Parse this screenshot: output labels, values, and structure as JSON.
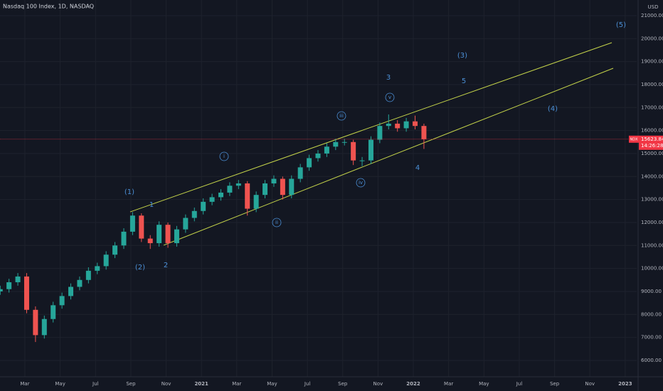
{
  "chart_data": {
    "type": "candlestick",
    "title": "Nasdaq 100 Index, 1D, NASDAQ",
    "currency": "USD",
    "symbol_tag": "NDX",
    "countdown": "14:26:28",
    "x": [
      0.6,
      1.1,
      1.6,
      2.1,
      2.6,
      3.1,
      3.6,
      4.1,
      4.6,
      5.1,
      5.6,
      6.1,
      6.6,
      7.1,
      7.6,
      8.1,
      8.6,
      9.1,
      9.6,
      10.1,
      10.6,
      11.1,
      11.6,
      12.1,
      12.6,
      13.1,
      13.6,
      14.1,
      14.6,
      15.1,
      15.6,
      16.1,
      16.6,
      17.1,
      17.6,
      18.1,
      18.6,
      19.1,
      19.6,
      20.1,
      20.6,
      21.1,
      21.6,
      22.1,
      22.6,
      23.1,
      23.6,
      24.1,
      24.6
    ],
    "open": [
      9000,
      9100,
      9400,
      9650,
      8200,
      7100,
      7800,
      8400,
      8800,
      9200,
      9500,
      9900,
      10100,
      10600,
      11000,
      11600,
      12300,
      11300,
      11100,
      11900,
      11100,
      11700,
      12200,
      12500,
      12900,
      13100,
      13300,
      13600,
      13700,
      12600,
      13200,
      13700,
      13900,
      13200,
      13900,
      14400,
      14800,
      15000,
      15300,
      15500,
      15500,
      14700,
      14700,
      15600,
      16200,
      16300,
      16100,
      16400,
      16200
    ],
    "high": [
      9250,
      9550,
      9800,
      9800,
      8350,
      7950,
      8550,
      8950,
      9350,
      9650,
      10050,
      10250,
      10750,
      11150,
      11750,
      12450,
      12400,
      11450,
      12050,
      12000,
      11850,
      12350,
      12650,
      13050,
      13250,
      13450,
      13750,
      13850,
      13800,
      13350,
      13850,
      14050,
      14000,
      14050,
      14550,
      14950,
      15150,
      15450,
      15650,
      15650,
      15600,
      14850,
      15750,
      16350,
      16700,
      16450,
      16550,
      16650,
      16300
    ],
    "low": [
      8850,
      8950,
      9250,
      8050,
      6800,
      6950,
      7650,
      8250,
      8650,
      9050,
      9350,
      9750,
      9950,
      10450,
      10850,
      11450,
      11150,
      10850,
      10950,
      10900,
      10950,
      11550,
      12050,
      12350,
      12750,
      12950,
      13150,
      13450,
      12300,
      12450,
      13050,
      13550,
      13000,
      13050,
      13750,
      14250,
      14650,
      14850,
      15150,
      15350,
      14500,
      14450,
      14550,
      15450,
      16050,
      15950,
      15950,
      16050,
      15200
    ],
    "close": [
      9100,
      9400,
      9650,
      8200,
      7100,
      7800,
      8400,
      8800,
      9200,
      9500,
      9900,
      10100,
      10600,
      11000,
      11600,
      12300,
      11300,
      11100,
      11900,
      11100,
      11700,
      12200,
      12500,
      12900,
      13100,
      13300,
      13600,
      13700,
      12600,
      13200,
      13700,
      13900,
      13200,
      13900,
      14400,
      14800,
      15000,
      15300,
      15500,
      15500,
      14700,
      14700,
      15600,
      16200,
      16300,
      16100,
      16400,
      16200,
      15623.84
    ],
    "up_color": "#26a69a",
    "down_color": "#ef5350",
    "price_line_color": "#f23645",
    "xlim": [
      0.59,
      36.65
    ],
    "ylim": [
      5287,
      21680
    ],
    "xticks": [
      {
        "value": 2,
        "label": "Mar"
      },
      {
        "value": 4,
        "label": "May"
      },
      {
        "value": 6,
        "label": "Jul"
      },
      {
        "value": 8,
        "label": "Sep"
      },
      {
        "value": 10,
        "label": "Nov"
      },
      {
        "value": 12,
        "label": "2021"
      },
      {
        "value": 14,
        "label": "Mar"
      },
      {
        "value": 16,
        "label": "May"
      },
      {
        "value": 18,
        "label": "Jul"
      },
      {
        "value": 20,
        "label": "Sep"
      },
      {
        "value": 22,
        "label": "Nov"
      },
      {
        "value": 24,
        "label": "2022"
      },
      {
        "value": 26,
        "label": "Mar"
      },
      {
        "value": 28,
        "label": "May"
      },
      {
        "value": 30,
        "label": "Jul"
      },
      {
        "value": 32,
        "label": "Sep"
      },
      {
        "value": 34,
        "label": "Nov"
      },
      {
        "value": 36,
        "label": "2023"
      }
    ],
    "yticks": [
      {
        "value": 6000,
        "label": "6000.00"
      },
      {
        "value": 7000,
        "label": "7000.00"
      },
      {
        "value": 8000,
        "label": "8000.00"
      },
      {
        "value": 9000,
        "label": "9000.00"
      },
      {
        "value": 10000,
        "label": "10000.00"
      },
      {
        "value": 11000,
        "label": "11000.00"
      },
      {
        "value": 12000,
        "label": "12000.00"
      },
      {
        "value": 13000,
        "label": "13000.00"
      },
      {
        "value": 14000,
        "label": "14000.00"
      },
      {
        "value": 15000,
        "label": "15000.00"
      },
      {
        "value": 16000,
        "label": "16000.00"
      },
      {
        "value": 17000,
        "label": "17000.00"
      },
      {
        "value": 18000,
        "label": "18000.00"
      },
      {
        "value": 19000,
        "label": "19000.00"
      },
      {
        "value": 20000,
        "label": "20000.00"
      },
      {
        "value": 21000,
        "label": "21000.00"
      }
    ],
    "grid": true,
    "trendlines": [
      {
        "x": [
          7.96,
          35.24
        ],
        "y": [
          12460,
          19825
        ]
      },
      {
        "x": [
          9.86,
          35.32
        ],
        "y": [
          11010,
          18710
        ]
      }
    ],
    "trendline_color": "#c5d44a",
    "annotations": [
      "(1)",
      "(2)",
      "1",
      "2",
      "i",
      "ii",
      "iii",
      "iv",
      "v",
      "3",
      "4",
      "5",
      "(3)",
      "(4)",
      "(5)"
    ]
  }
}
